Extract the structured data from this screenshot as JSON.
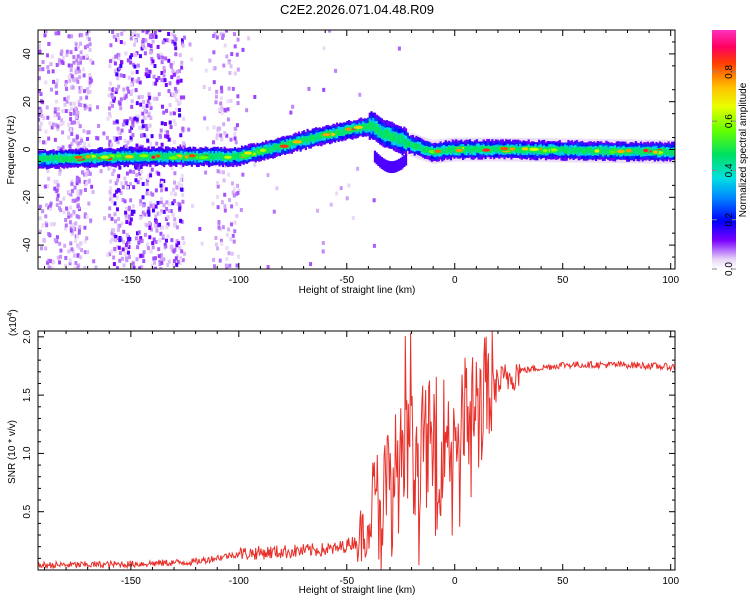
{
  "title": "C2E2.2026.071.04.48.R09",
  "chart_data": [
    {
      "type": "heatmap",
      "name": "spectrogram",
      "xlabel": "Height of straight line (km)",
      "ylabel": "Frequency (Hz)",
      "xlim": [
        -193,
        102
      ],
      "ylim": [
        -50,
        50
      ],
      "xticks": [
        -150,
        -100,
        -50,
        0,
        50,
        100
      ],
      "yticks": [
        -40,
        -20,
        0,
        20,
        40
      ],
      "colorbar": {
        "label": "Normalized spectral amplitude",
        "range": [
          0,
          0.97
        ],
        "ticks": [
          "0.0",
          "0.2",
          "0.4",
          "0.6",
          "0.8"
        ]
      },
      "ridge": [
        {
          "x": -193,
          "y": -4
        },
        {
          "x": -150,
          "y": -3
        },
        {
          "x": -122,
          "y": -3
        },
        {
          "x": -100,
          "y": -3
        },
        {
          "x": -82,
          "y": 1
        },
        {
          "x": -65,
          "y": 5
        },
        {
          "x": -50,
          "y": 8
        },
        {
          "x": -38,
          "y": 10
        },
        {
          "x": -34,
          "y": 7
        },
        {
          "x": -25,
          "y": 4
        },
        {
          "x": -20,
          "y": 2
        },
        {
          "x": -10,
          "y": -1
        },
        {
          "x": 0,
          "y": 0
        },
        {
          "x": 20,
          "y": 0
        },
        {
          "x": 102,
          "y": -1
        }
      ]
    },
    {
      "type": "line",
      "name": "snr",
      "xlabel": "Height of straight line (km)",
      "ylabel": "SNR (10 * v/v)",
      "scale_label": "(x10",
      "scale_exp": "4",
      "scale_close": ")",
      "xlim": [
        -193,
        102
      ],
      "ylim": [
        0,
        2.05
      ],
      "xticks": [
        -150,
        -100,
        -50,
        0,
        50,
        100
      ],
      "yticks": [
        "0.5",
        "1.0",
        "1.5",
        "2.0"
      ],
      "color": "#e8302a",
      "trend": [
        {
          "x": -193,
          "y": 0.04
        },
        {
          "x": -150,
          "y": 0.05
        },
        {
          "x": -120,
          "y": 0.07
        },
        {
          "x": -100,
          "y": 0.14
        },
        {
          "x": -75,
          "y": 0.16
        },
        {
          "x": -55,
          "y": 0.18
        },
        {
          "x": -45,
          "y": 0.25
        },
        {
          "x": -35,
          "y": 0.55
        },
        {
          "x": -25,
          "y": 0.9
        },
        {
          "x": -15,
          "y": 1.05
        },
        {
          "x": 0,
          "y": 1.2
        },
        {
          "x": 10,
          "y": 1.4
        },
        {
          "x": 20,
          "y": 1.6
        },
        {
          "x": 30,
          "y": 1.71
        },
        {
          "x": 50,
          "y": 1.76
        },
        {
          "x": 80,
          "y": 1.76
        },
        {
          "x": 102,
          "y": 1.74
        }
      ]
    }
  ]
}
